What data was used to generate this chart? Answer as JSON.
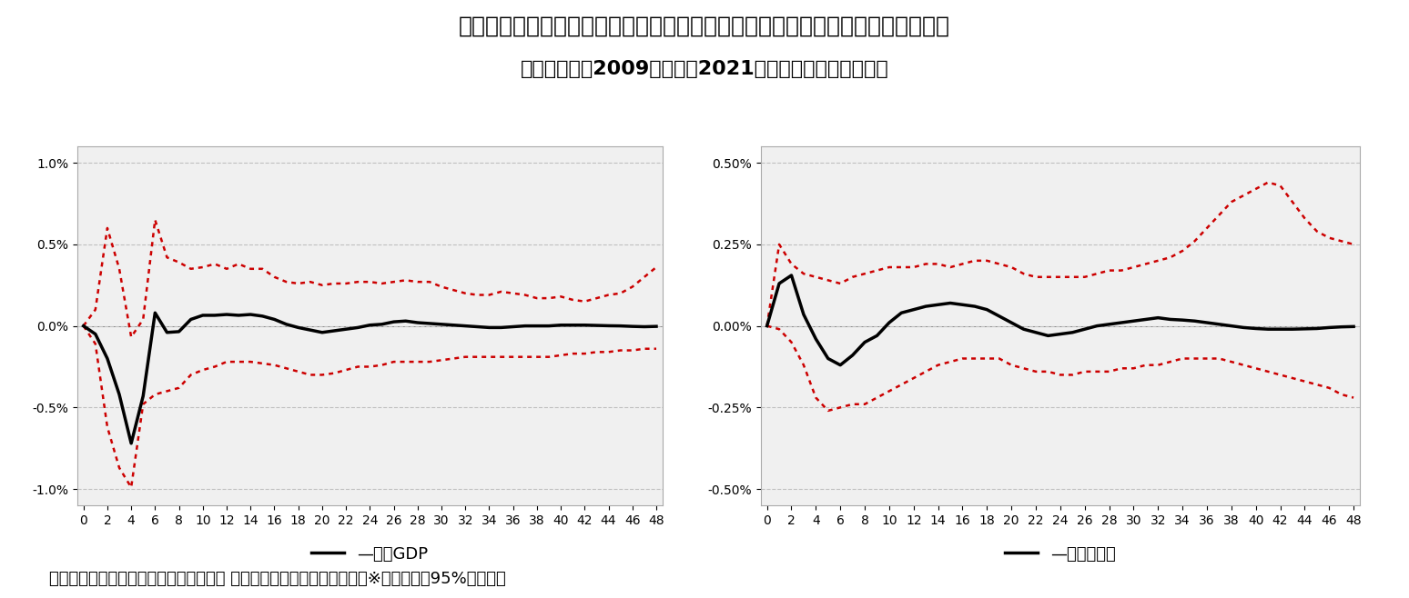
{
  "title_line1": "図表４：クレジットカード決済額にショックを与えたときのインパルス応答関数",
  "title_line2": "（分析期間：2009年１月〜2021年３月の四半期データ）",
  "footnote": "（資料：内閣府、総務省、経済産業省、 日本銀行のデータから作成）　※赤い点線は95%信頼区間",
  "x_ticks": [
    0,
    2,
    4,
    6,
    8,
    10,
    12,
    14,
    16,
    18,
    20,
    22,
    24,
    26,
    28,
    30,
    32,
    34,
    36,
    38,
    40,
    42,
    44,
    46,
    48
  ],
  "left_chart": {
    "label": "実質GDP",
    "ylim": [
      -0.011,
      0.011
    ],
    "yticks": [
      -0.01,
      -0.005,
      0.0,
      0.005,
      0.01
    ],
    "ytick_labels": [
      "-1.0%",
      "-0.5%",
      "0.0%",
      "0.5%",
      "1.0%"
    ],
    "irf": [
      0.0,
      -0.05,
      -0.2,
      -0.42,
      -0.72,
      -0.43,
      0.08,
      -0.04,
      -0.035,
      0.04,
      0.065,
      0.065,
      0.07,
      0.065,
      0.07,
      0.06,
      0.04,
      0.01,
      -0.01,
      -0.025,
      -0.04,
      -0.03,
      -0.02,
      -0.01,
      0.005,
      0.01,
      0.025,
      0.03,
      0.02,
      0.015,
      0.01,
      0.005,
      0.0,
      -0.005,
      -0.01,
      -0.01,
      -0.005,
      0.0,
      0.0,
      0.0,
      0.005,
      0.005,
      0.005,
      0.003,
      0.001,
      0.0,
      -0.003,
      -0.005,
      -0.003
    ],
    "upper": [
      0.0,
      0.1,
      0.6,
      0.35,
      -0.068,
      0.04,
      0.65,
      0.42,
      0.39,
      0.35,
      0.36,
      0.38,
      0.35,
      0.38,
      0.35,
      0.35,
      0.3,
      0.27,
      0.26,
      0.27,
      0.25,
      0.26,
      0.26,
      0.27,
      0.27,
      0.26,
      0.27,
      0.28,
      0.27,
      0.27,
      0.24,
      0.22,
      0.2,
      0.19,
      0.19,
      0.21,
      0.2,
      0.19,
      0.17,
      0.17,
      0.18,
      0.16,
      0.15,
      0.17,
      0.19,
      0.2,
      0.24,
      0.3,
      0.36
    ],
    "lower": [
      0.0,
      -0.11,
      -0.62,
      -0.87,
      -0.99,
      -0.48,
      -0.42,
      -0.4,
      -0.38,
      -0.3,
      -0.27,
      -0.25,
      -0.22,
      -0.22,
      -0.22,
      -0.23,
      -0.24,
      -0.26,
      -0.28,
      -0.3,
      -0.3,
      -0.29,
      -0.27,
      -0.25,
      -0.25,
      -0.24,
      -0.22,
      -0.22,
      -0.22,
      -0.22,
      -0.21,
      -0.2,
      -0.19,
      -0.19,
      -0.19,
      -0.19,
      -0.19,
      -0.19,
      -0.19,
      -0.19,
      -0.18,
      -0.17,
      -0.17,
      -0.16,
      -0.16,
      -0.15,
      -0.15,
      -0.14,
      -0.14
    ]
  },
  "right_chart": {
    "label": "物価上昇率",
    "ylim": [
      -0.0055,
      0.0055
    ],
    "yticks": [
      -0.005,
      -0.0025,
      0.0,
      0.0025,
      0.005
    ],
    "ytick_labels": [
      "-0.50%",
      "-0.25%",
      "0.00%",
      "0.25%",
      "0.50%"
    ],
    "irf": [
      0.0,
      0.13,
      0.155,
      0.035,
      -0.04,
      -0.1,
      -0.12,
      -0.09,
      -0.05,
      -0.03,
      0.01,
      0.04,
      0.05,
      0.06,
      0.065,
      0.07,
      0.065,
      0.06,
      0.05,
      0.03,
      0.01,
      -0.01,
      -0.02,
      -0.03,
      -0.025,
      -0.02,
      -0.01,
      0.0,
      0.005,
      0.01,
      0.015,
      0.02,
      0.025,
      0.02,
      0.018,
      0.015,
      0.01,
      0.005,
      0.0,
      -0.005,
      -0.008,
      -0.01,
      -0.01,
      -0.01,
      -0.009,
      -0.008,
      -0.005,
      -0.003,
      -0.002
    ],
    "upper": [
      0.0,
      0.25,
      0.19,
      0.16,
      0.15,
      0.14,
      0.13,
      0.15,
      0.16,
      0.17,
      0.18,
      0.18,
      0.18,
      0.19,
      0.19,
      0.18,
      0.19,
      0.2,
      0.2,
      0.19,
      0.18,
      0.16,
      0.15,
      0.15,
      0.15,
      0.15,
      0.15,
      0.16,
      0.17,
      0.17,
      0.18,
      0.19,
      0.2,
      0.21,
      0.23,
      0.26,
      0.3,
      0.34,
      0.38,
      0.4,
      0.42,
      0.44,
      0.43,
      0.38,
      0.33,
      0.29,
      0.27,
      0.26,
      0.25
    ],
    "lower": [
      0.0,
      -0.01,
      -0.05,
      -0.12,
      -0.22,
      -0.26,
      -0.25,
      -0.24,
      -0.24,
      -0.22,
      -0.2,
      -0.18,
      -0.16,
      -0.14,
      -0.12,
      -0.11,
      -0.1,
      -0.1,
      -0.1,
      -0.1,
      -0.12,
      -0.13,
      -0.14,
      -0.14,
      -0.15,
      -0.15,
      -0.14,
      -0.14,
      -0.14,
      -0.13,
      -0.13,
      -0.12,
      -0.12,
      -0.11,
      -0.1,
      -0.1,
      -0.1,
      -0.1,
      -0.11,
      -0.12,
      -0.13,
      -0.14,
      -0.15,
      -0.16,
      -0.17,
      -0.18,
      -0.19,
      -0.21,
      -0.22
    ]
  },
  "line_color": "#000000",
  "ci_color": "#cc0000",
  "bg_color": "#ffffff",
  "plot_bg_color": "#f0f0f0",
  "grid_color": "#c0c0c0",
  "title_fontsize": 18,
  "subtitle_fontsize": 16,
  "tick_fontsize": 10,
  "label_fontsize": 13,
  "footnote_fontsize": 13
}
